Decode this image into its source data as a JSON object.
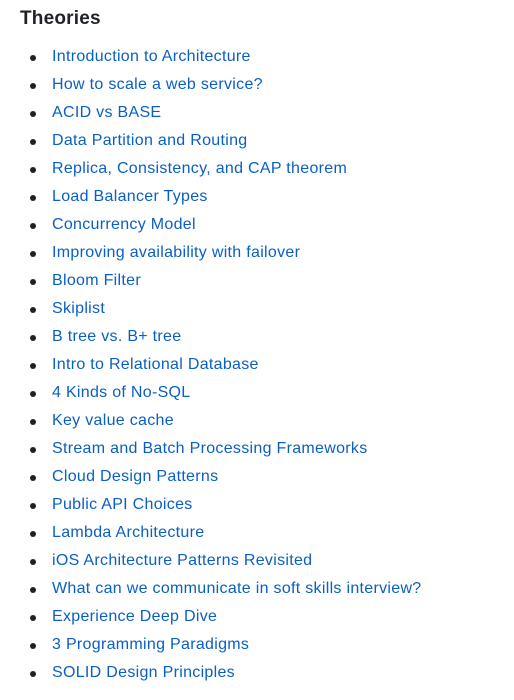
{
  "section": {
    "title": "Theories"
  },
  "topics": [
    {
      "label": "Introduction to Architecture"
    },
    {
      "label": "How to scale a web service?"
    },
    {
      "label": "ACID vs BASE"
    },
    {
      "label": "Data Partition and Routing"
    },
    {
      "label": "Replica, Consistency, and CAP theorem"
    },
    {
      "label": "Load Balancer Types"
    },
    {
      "label": "Concurrency Model"
    },
    {
      "label": "Improving availability with failover"
    },
    {
      "label": "Bloom Filter"
    },
    {
      "label": "Skiplist"
    },
    {
      "label": "B tree vs. B+ tree"
    },
    {
      "label": "Intro to Relational Database"
    },
    {
      "label": "4 Kinds of No-SQL"
    },
    {
      "label": "Key value cache"
    },
    {
      "label": "Stream and Batch Processing Frameworks"
    },
    {
      "label": "Cloud Design Patterns"
    },
    {
      "label": "Public API Choices"
    },
    {
      "label": "Lambda Architecture"
    },
    {
      "label": "iOS Architecture Patterns Revisited"
    },
    {
      "label": "What can we communicate in soft skills interview?"
    },
    {
      "label": "Experience Deep Dive"
    },
    {
      "label": "3 Programming Paradigms"
    },
    {
      "label": "SOLID Design Principles"
    }
  ],
  "colors": {
    "link": "#0a5fc4",
    "text": "#1f2328",
    "background": "#ffffff"
  }
}
